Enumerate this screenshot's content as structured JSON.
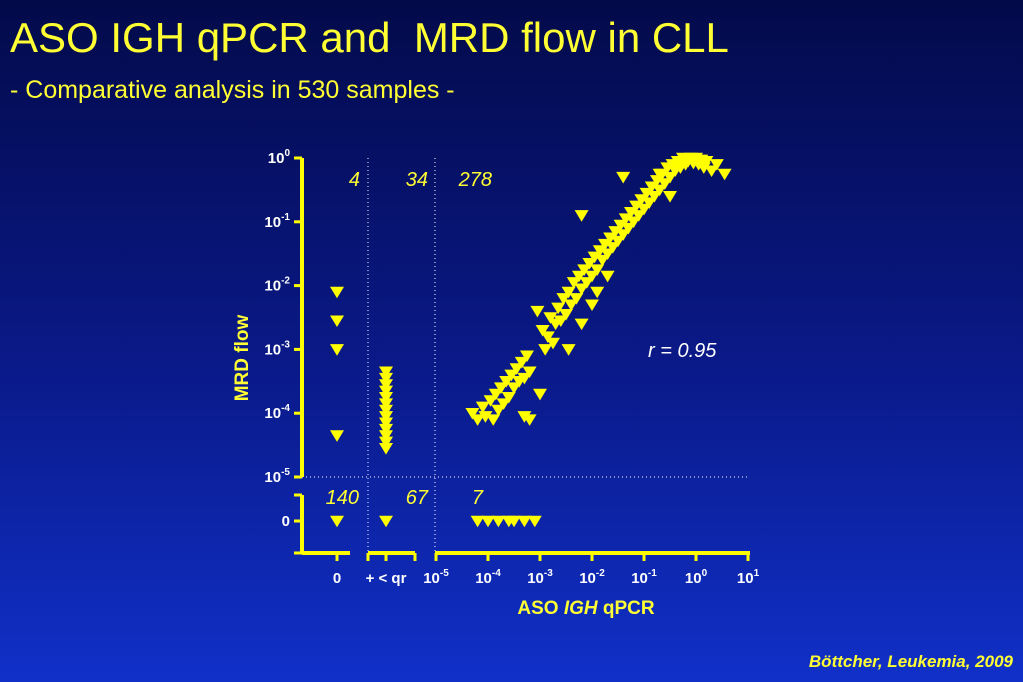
{
  "title": "ASO IGH qPCR and  MRD flow in CLL",
  "subtitle": "- Comparative analysis in 530 samples -",
  "citation": "Böttcher, Leukemia, 2009",
  "chart_data": {
    "type": "scatter",
    "xlabel_prefix": "ASO ",
    "xlabel_italic": "IGH",
    "xlabel_suffix": " qPCR",
    "ylabel": "MRD flow",
    "x_tick_labels": [
      {
        "base": "0",
        "exp": ""
      },
      {
        "base": "+ < qr",
        "exp": ""
      },
      {
        "base": "10",
        "exp": "-5"
      },
      {
        "base": "10",
        "exp": "-4"
      },
      {
        "base": "10",
        "exp": "-3"
      },
      {
        "base": "10",
        "exp": "-2"
      },
      {
        "base": "10",
        "exp": "-1"
      },
      {
        "base": "10",
        "exp": "0"
      },
      {
        "base": "10",
        "exp": "1"
      }
    ],
    "y_tick_labels": [
      {
        "base": "10",
        "exp": "0"
      },
      {
        "base": "10",
        "exp": "-1"
      },
      {
        "base": "10",
        "exp": "-2"
      },
      {
        "base": "10",
        "exp": "-3"
      },
      {
        "base": "10",
        "exp": "-4"
      },
      {
        "base": "10",
        "exp": "-5"
      },
      {
        "base": "0",
        "exp": ""
      }
    ],
    "x_log_range": [
      -5,
      1
    ],
    "y_log_range": [
      -5,
      0
    ],
    "annotation": "r = 0.95",
    "quadrant_counts": {
      "top": [
        "4",
        "34",
        "278"
      ],
      "bottom": [
        "140",
        "67",
        "7"
      ]
    },
    "marker_color": "#ffff00",
    "series": [
      {
        "region": "x_zero",
        "points": [
          [
            0,
            -2.1
          ],
          [
            0,
            -2.55
          ],
          [
            0,
            -3.0
          ],
          [
            0,
            -4.35
          ],
          [
            0,
            "zero"
          ]
        ]
      },
      {
        "region": "x_below_qr",
        "points": [
          [
            0,
            -3.35
          ],
          [
            0,
            -3.45
          ],
          [
            0,
            -3.55
          ],
          [
            0,
            -3.65
          ],
          [
            0,
            -3.75
          ],
          [
            0,
            -3.85
          ],
          [
            0,
            -3.95
          ],
          [
            0,
            -4.05
          ],
          [
            0,
            -4.15
          ],
          [
            0,
            -4.25
          ],
          [
            0,
            -4.35
          ],
          [
            0,
            -4.45
          ],
          [
            0,
            -4.55
          ],
          [
            0,
            "zero"
          ]
        ]
      },
      {
        "region": "log",
        "points": [
          [
            -4.3,
            -4.0
          ],
          [
            -4.2,
            -4.1
          ],
          [
            -4.1,
            -3.9
          ],
          [
            -4.05,
            -4.05
          ],
          [
            -3.95,
            -3.8
          ],
          [
            -3.9,
            -4.1
          ],
          [
            -3.85,
            -3.7
          ],
          [
            -3.8,
            -3.95
          ],
          [
            -3.75,
            -3.6
          ],
          [
            -3.7,
            -3.85
          ],
          [
            -3.65,
            -3.5
          ],
          [
            -3.6,
            -3.75
          ],
          [
            -3.55,
            -3.4
          ],
          [
            -3.5,
            -3.6
          ],
          [
            -3.45,
            -3.3
          ],
          [
            -3.4,
            -3.5
          ],
          [
            -3.35,
            -3.2
          ],
          [
            -3.3,
            -3.45
          ],
          [
            -3.25,
            -3.1
          ],
          [
            -3.2,
            -3.35
          ],
          [
            -3.3,
            -4.05
          ],
          [
            -3.2,
            -4.1
          ],
          [
            -3.0,
            -3.7
          ],
          [
            -3.05,
            -2.4
          ],
          [
            -2.95,
            -2.7
          ],
          [
            -2.9,
            -3.0
          ],
          [
            -2.85,
            -2.8
          ],
          [
            -2.8,
            -2.5
          ],
          [
            -2.75,
            -2.9
          ],
          [
            -2.7,
            -2.6
          ],
          [
            -2.65,
            -2.35
          ],
          [
            -2.6,
            -2.55
          ],
          [
            -2.55,
            -2.2
          ],
          [
            -2.5,
            -2.45
          ],
          [
            -2.45,
            -2.1
          ],
          [
            -2.4,
            -2.3
          ],
          [
            -2.35,
            -1.95
          ],
          [
            -2.3,
            -2.2
          ],
          [
            -2.25,
            -1.85
          ],
          [
            -2.2,
            -2.05
          ],
          [
            -2.15,
            -1.75
          ],
          [
            -2.1,
            -1.95
          ],
          [
            -2.05,
            -1.65
          ],
          [
            -2.0,
            -1.85
          ],
          [
            -1.95,
            -1.55
          ],
          [
            -1.9,
            -1.75
          ],
          [
            -1.85,
            -1.45
          ],
          [
            -1.8,
            -1.6
          ],
          [
            -1.75,
            -1.35
          ],
          [
            -1.7,
            -1.5
          ],
          [
            -2.45,
            -3.0
          ],
          [
            -2.2,
            -2.6
          ],
          [
            -2.0,
            -2.3
          ],
          [
            -1.7,
            -1.85
          ],
          [
            -1.9,
            -2.1
          ],
          [
            -1.65,
            -1.25
          ],
          [
            -1.6,
            -1.4
          ],
          [
            -1.55,
            -1.15
          ],
          [
            -1.5,
            -1.3
          ],
          [
            -1.45,
            -1.05
          ],
          [
            -1.4,
            -1.2
          ],
          [
            -1.35,
            -0.95
          ],
          [
            -1.3,
            -1.1
          ],
          [
            -1.25,
            -0.85
          ],
          [
            -1.2,
            -1.0
          ],
          [
            -1.15,
            -0.75
          ],
          [
            -1.1,
            -0.9
          ],
          [
            -1.05,
            -0.65
          ],
          [
            -1.0,
            -0.8
          ],
          [
            -0.95,
            -0.55
          ],
          [
            -0.9,
            -0.7
          ],
          [
            -0.85,
            -0.45
          ],
          [
            -0.8,
            -0.6
          ],
          [
            -0.75,
            -0.35
          ],
          [
            -0.7,
            -0.5
          ],
          [
            -0.65,
            -0.25
          ],
          [
            -0.6,
            -0.4
          ],
          [
            -0.55,
            -0.15
          ],
          [
            -0.5,
            -0.3
          ],
          [
            -0.45,
            -0.1
          ],
          [
            -0.4,
            -0.2
          ],
          [
            -0.35,
            -0.05
          ],
          [
            -0.3,
            -0.15
          ],
          [
            -0.25,
            0.0
          ],
          [
            -0.2,
            -0.1
          ],
          [
            -0.15,
            -0.05
          ],
          [
            -0.1,
            0.0
          ],
          [
            -0.05,
            -0.08
          ],
          [
            0.0,
            0.0
          ],
          [
            0.05,
            -0.1
          ],
          [
            0.1,
            -0.03
          ],
          [
            0.15,
            -0.15
          ],
          [
            0.2,
            -0.05
          ],
          [
            0.3,
            -0.2
          ],
          [
            0.4,
            -0.1
          ],
          [
            0.55,
            -0.25
          ],
          [
            -0.7,
            -0.25
          ],
          [
            -1.4,
            -0.3
          ],
          [
            -0.5,
            -0.6
          ],
          [
            -2.2,
            -0.9
          ]
        ]
      },
      {
        "region": "log_x_zero_y",
        "points": [
          [
            -4.2,
            "zero"
          ],
          [
            -4.0,
            "zero"
          ],
          [
            -3.8,
            "zero"
          ],
          [
            -3.6,
            "zero"
          ],
          [
            -3.5,
            "zero"
          ],
          [
            -3.3,
            "zero"
          ],
          [
            -3.1,
            "zero"
          ]
        ]
      }
    ]
  }
}
